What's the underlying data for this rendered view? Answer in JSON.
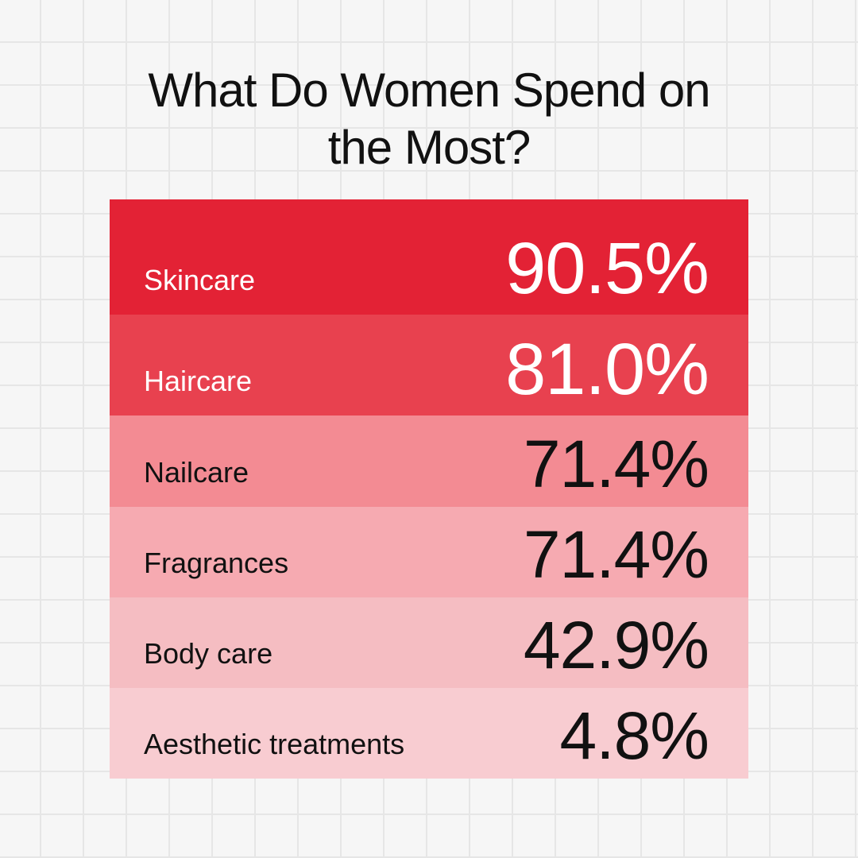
{
  "title": "What Do Women Spend on the Most?",
  "table": {
    "rows": [
      [
        "Skincare",
        "90.5%"
      ],
      [
        "Haircare",
        "81.0%"
      ],
      [
        "Nailcare",
        "71.4%"
      ],
      [
        "Fragrances",
        "71.4%"
      ],
      [
        "Body care",
        "42.9%"
      ],
      [
        "Aesthetic treatments",
        "4.8%"
      ]
    ]
  }
}
